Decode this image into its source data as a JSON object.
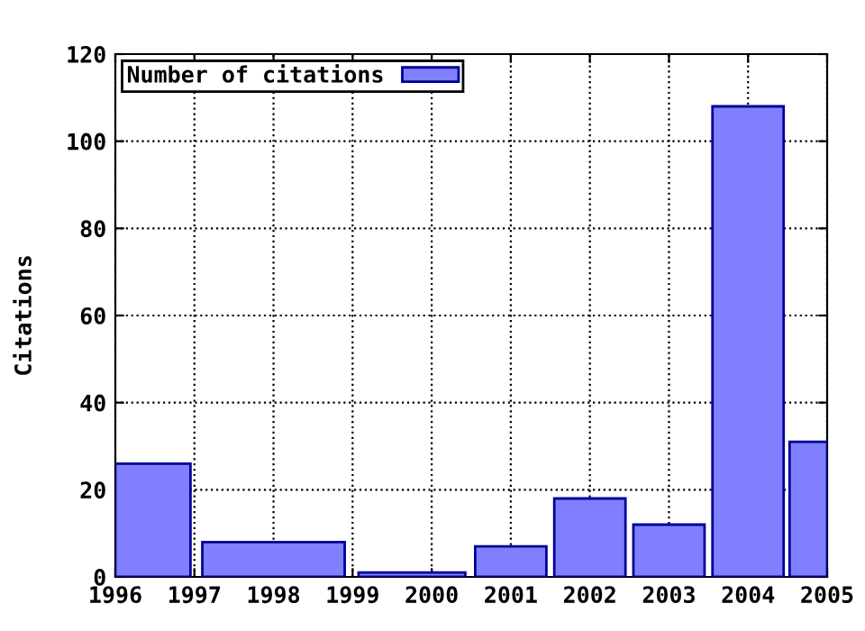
{
  "chart_data": {
    "type": "histogram",
    "ylabel": "Citations",
    "bins": [
      1996,
      1997,
      1999,
      2000.5,
      2001.5,
      2002.5,
      2003.5,
      2004.5,
      2005
    ],
    "series": [
      {
        "name": "Number of citations",
        "color": "#8080ff",
        "values": [
          26,
          8,
          1,
          7,
          18,
          12,
          108,
          31
        ]
      }
    ],
    "xlim": [
      1996,
      2005
    ],
    "xticks": [
      1996,
      1997,
      1998,
      1999,
      2000,
      2001,
      2002,
      2003,
      2004,
      2005
    ],
    "ylim": [
      0,
      120
    ],
    "yticks": [
      0,
      20,
      40,
      60,
      80,
      100,
      120
    ],
    "grid": true,
    "legend": "top left",
    "line_style": "dotted"
  }
}
